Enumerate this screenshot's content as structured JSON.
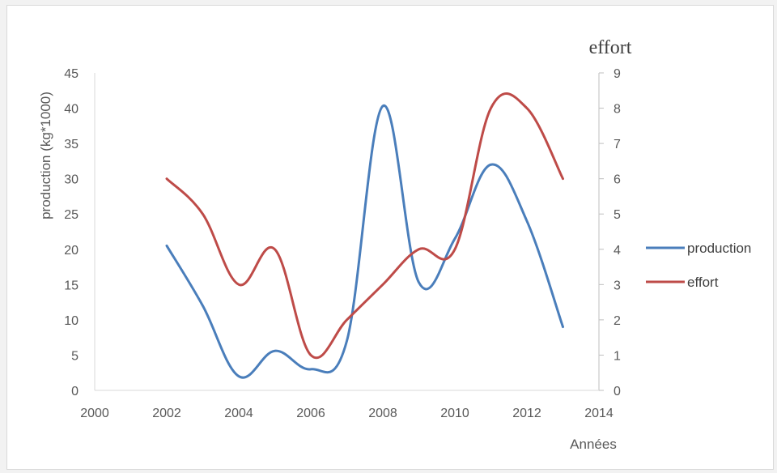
{
  "chart_data": {
    "type": "line",
    "x_axis": {
      "label": "Années",
      "min": 2000,
      "max": 2014,
      "step": 2
    },
    "y_axis_left": {
      "label": "production (kg*1000)",
      "min": 0,
      "max": 45,
      "step": 5
    },
    "y_axis_right": {
      "label": "effort",
      "min": 0,
      "max": 9,
      "step": 1
    },
    "legend_position": "right",
    "series": [
      {
        "name": "production",
        "axis": "left",
        "color": "#4a7ebb",
        "x": [
          2002,
          2003,
          2004,
          2005,
          2006,
          2007,
          2008,
          2009,
          2010,
          2011,
          2012,
          2013
        ],
        "values": [
          20.5,
          12,
          2,
          5.6,
          3,
          7,
          40.3,
          15.3,
          21.5,
          32,
          24,
          9
        ]
      },
      {
        "name": "effort",
        "axis": "right",
        "color": "#be4b48",
        "x": [
          2002,
          2003,
          2004,
          2005,
          2006,
          2007,
          2008,
          2009,
          2010,
          2011,
          2012,
          2013
        ],
        "values": [
          6,
          5,
          3,
          4,
          1,
          2,
          3,
          4,
          4,
          8,
          8,
          6
        ]
      }
    ]
  }
}
